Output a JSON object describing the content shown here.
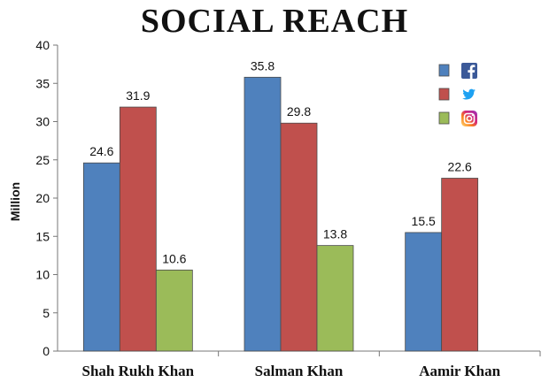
{
  "chart_data": {
    "type": "bar",
    "title": "SOCIAL REACH",
    "ylabel": "Million",
    "xlabel": "",
    "ylim": [
      0,
      40
    ],
    "yticks": [
      0,
      5,
      10,
      15,
      20,
      25,
      30,
      35,
      40
    ],
    "categories": [
      "Shah Rukh Khan",
      "Salman Khan",
      "Aamir Khan"
    ],
    "series": [
      {
        "icon": "facebook-icon",
        "color": "#4f81bd",
        "values": [
          24.6,
          35.8,
          15.5
        ]
      },
      {
        "icon": "twitter-icon",
        "color": "#c0504d",
        "values": [
          31.9,
          29.8,
          22.6
        ]
      },
      {
        "icon": "instagram-icon",
        "color": "#9bbb59",
        "values": [
          10.6,
          13.8,
          null
        ]
      }
    ],
    "legend_position": "top-right",
    "grid": false
  }
}
